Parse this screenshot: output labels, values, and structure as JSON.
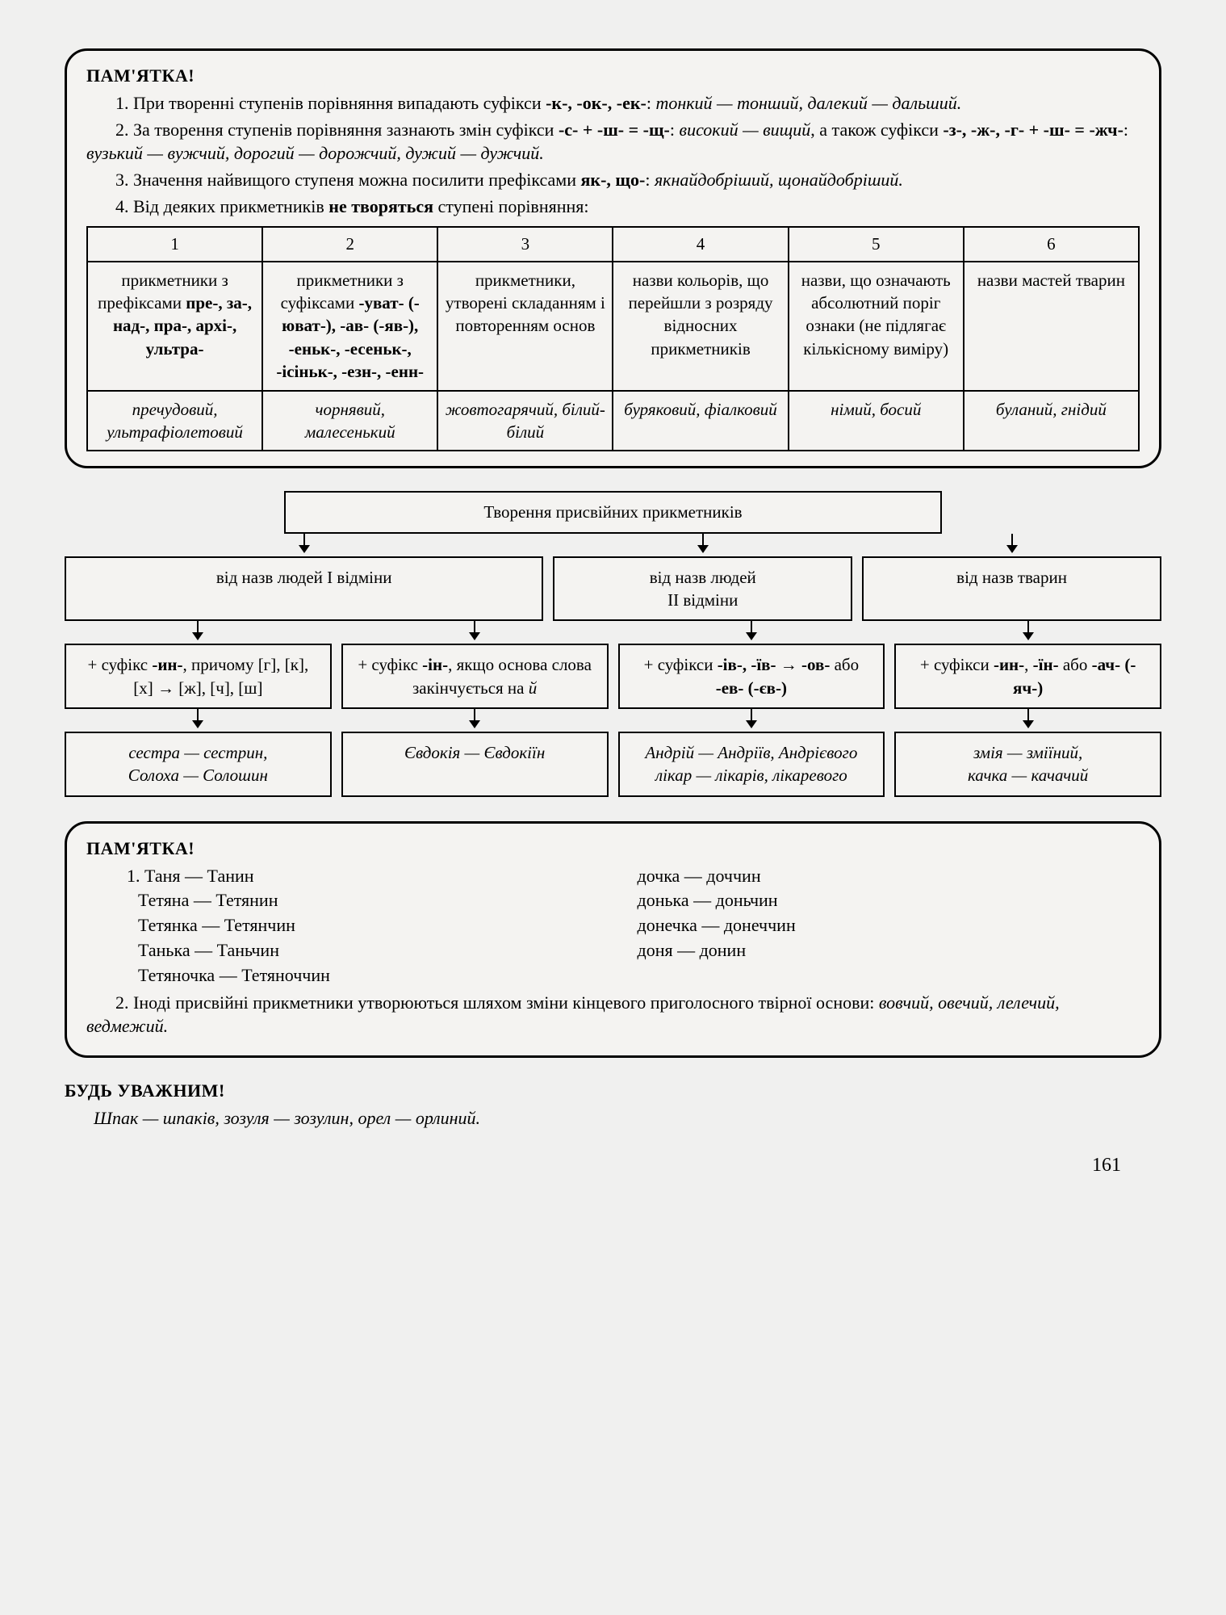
{
  "section1": {
    "heading": "ПАМ'ЯТКА!",
    "p1a": "1. При творенні ступенів порівняння випадають суфікси ",
    "p1b": "-к-, -ок-, -ек-",
    "p1c": ": ",
    "p1d": "тонкий — тонший, далекий — дальший.",
    "p2a": "2. За творення ступенів порівняння зазнають змін суфікси ",
    "p2b": "-с- + -ш- = -щ-",
    "p2c": ": ",
    "p2d": "високий — вищий",
    "p2e": ", а також суфікси ",
    "p2f": "-з-, -ж-, -г- + -ш- = -жч-",
    "p2g": ": ",
    "p2h": "вузький — вужчий, дорогий — дорожчий, дужий — дужчий.",
    "p3a": "3. Значення найвищого ступеня можна посилити префіксами ",
    "p3b": "як-, що-",
    "p3c": ": ",
    "p3d": "якнайдобріший, щонайдобріший.",
    "p4a": "4. Від деяких прикметників ",
    "p4b": "не творяться",
    "p4c": " ступені порівняння:",
    "table": {
      "headers": [
        "1",
        "2",
        "3",
        "4",
        "5",
        "6"
      ],
      "row1": [
        "прикметники з префіксами <b>пре-, за-, над-, пра-, архі-, ультра-</b>",
        "прикметники з суфіксами <b>-уват- (-юват-), -ав- (-яв-), -еньк-, -есеньк-, -ісіньк-, -езн-, -енн-</b>",
        "прикметники, утворені складанням і повторенням основ",
        "назви кольорів, що перейшли з розряду відносних прикметників",
        "назви, що означають абсолютний поріг ознаки (не підлягає кількісному виміру)",
        "назви мастей тварин"
      ],
      "row2": [
        "пречудовий, ультрафіолетовий",
        "чорнявий, малесенький",
        "жовтогарячий, білий-білий",
        "буряковий, фіалковий",
        "німий, босий",
        "буланий, гнідий"
      ]
    }
  },
  "flow": {
    "title": "Творення присвійних прикметників",
    "row2": [
      "від назв людей I відміни",
      "від назв людей II відміни",
      "",
      "від назв тварин"
    ],
    "row2b": [
      "від назв людей I відміни",
      "від назв людей\nII відміни",
      "від назв тварин"
    ],
    "row3": [
      "+ суфікс <b>-ин-</b>, причому [г], [к], [х] → [ж], [ч], [ш]",
      "+ суфікс <b>-ін-</b>, якщо основа слова закінчується на <i>й</i>",
      "+ суфікси <b>-ів-, -їв-</b> → <b>-ов-</b> або <b>-ев- (-єв-)</b>",
      "+ суфікси <b>-ин-</b>, <b>-їн-</b> або <b>-ач- (-яч-)</b>"
    ],
    "row4": [
      "сестра — сестрин,\nСолоха — Солошин",
      "Євдокія — Євдокіїн",
      "Андрій — Андріїв, Андрієвого\nлікар — лікарів, лікаревого",
      "змія — зміїний,\nкачка — качачий"
    ]
  },
  "section2": {
    "heading": "ПАМ'ЯТКА!",
    "intro": "1.",
    "left": [
      "Таня — Танин",
      "Тетяна — Тетянин",
      "Тетянка — Тетянчин",
      "Танька — Таньчин",
      "Тетяночка — Тетяноччин"
    ],
    "right": [
      "дочка — доччин",
      "донька — доньчин",
      "донечка — донеччин",
      "доня — донин"
    ],
    "p2a": "2. Іноді присвійні прикметники утворюються шляхом зміни кінцевого приголосного твірної основи: ",
    "p2b": "вовчий, овечий, лелечий, ведмежий."
  },
  "attention": {
    "heading": "БУДЬ УВАЖНИМ!",
    "line": "Шпак — шпаків, зозуля — зозулин, орел — орлиний."
  },
  "pageNumber": "161"
}
